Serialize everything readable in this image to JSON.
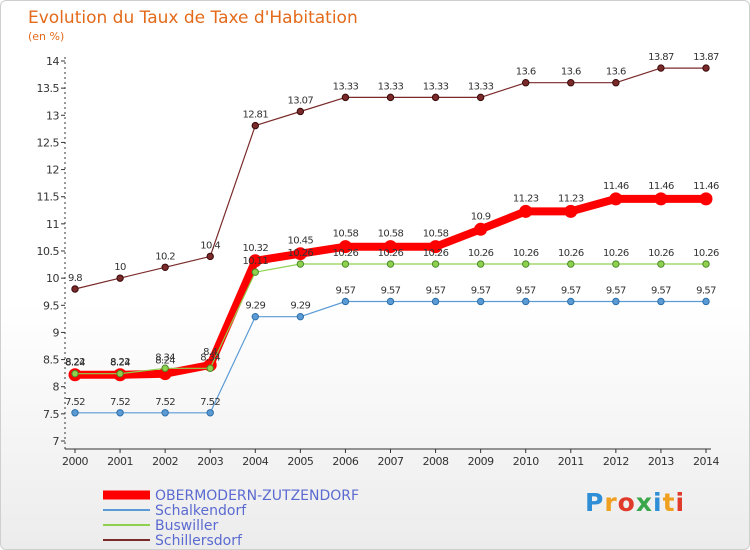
{
  "chart_data": {
    "type": "line",
    "title": "Evolution du Taux de Taxe d'Habitation",
    "subtitle": "(en %)",
    "xlabel": "",
    "ylabel": "",
    "x": [
      "2000",
      "2001",
      "2002",
      "2003",
      "2004",
      "2005",
      "2006",
      "2007",
      "2008",
      "2009",
      "2010",
      "2011",
      "2012",
      "2013",
      "2014"
    ],
    "ylim": [
      7,
      14
    ],
    "yticks": [
      "7",
      "7.5",
      "8",
      "8.5",
      "9",
      "9.5",
      "10",
      "10.5",
      "11",
      "11.5",
      "12",
      "12.5",
      "13",
      "13.5",
      "14"
    ],
    "grid": false,
    "legend_position": "bottom-left",
    "series": [
      {
        "name": "OBERMODERN-ZUTZENDORF",
        "color": "#ff0000",
        "labels": [
          "8.22",
          "8.22",
          "8.24",
          "8.4",
          "10.32",
          "10.45",
          "10.58",
          "10.58",
          "10.58",
          "10.9",
          "11.23",
          "11.23",
          "11.46",
          "11.46",
          "11.46"
        ],
        "values": [
          8.22,
          8.22,
          8.24,
          8.4,
          10.32,
          10.45,
          10.58,
          10.58,
          10.58,
          10.9,
          11.23,
          11.23,
          11.46,
          11.46,
          11.46
        ]
      },
      {
        "name": "Schalkendorf",
        "color": "#5b9bd5",
        "labels": [
          "7.52",
          "7.52",
          "7.52",
          "7.52",
          "9.29",
          "9.29",
          "9.57",
          "9.57",
          "9.57",
          "9.57",
          "9.57",
          "9.57",
          "9.57",
          "9.57",
          "9.57"
        ],
        "values": [
          7.52,
          7.52,
          7.52,
          7.52,
          9.29,
          9.29,
          9.57,
          9.57,
          9.57,
          9.57,
          9.57,
          9.57,
          9.57,
          9.57,
          9.57
        ]
      },
      {
        "name": "Buswiller",
        "color": "#8fd14f",
        "labels": [
          "8.24",
          "8.24",
          "8.34",
          "8.34",
          "10.11",
          "10.26",
          "10.26",
          "10.26",
          "10.26",
          "10.26",
          "10.26",
          "10.26",
          "10.26",
          "10.26",
          "10.26"
        ],
        "values": [
          8.24,
          8.24,
          8.34,
          8.34,
          10.11,
          10.26,
          10.26,
          10.26,
          10.26,
          10.26,
          10.26,
          10.26,
          10.26,
          10.26,
          10.26
        ]
      },
      {
        "name": "Schillersdorf",
        "color": "#7a2a2a",
        "labels": [
          "9.8",
          "10",
          "10.2",
          "10.4",
          "12.81",
          "13.07",
          "13.33",
          "13.33",
          "13.33",
          "13.33",
          "13.6",
          "13.6",
          "13.6",
          "13.87",
          "13.87"
        ],
        "values": [
          9.8,
          10,
          10.2,
          10.4,
          12.81,
          13.07,
          13.33,
          13.33,
          13.33,
          13.33,
          13.6,
          13.6,
          13.6,
          13.87,
          13.87
        ]
      }
    ]
  },
  "logo": {
    "text": "Proxiti",
    "colors": [
      "#2f8fd6",
      "#f0a020",
      "#e03a2a",
      "#3aa84a",
      "#2f8fd6",
      "#f0a020",
      "#e03a2a"
    ]
  }
}
